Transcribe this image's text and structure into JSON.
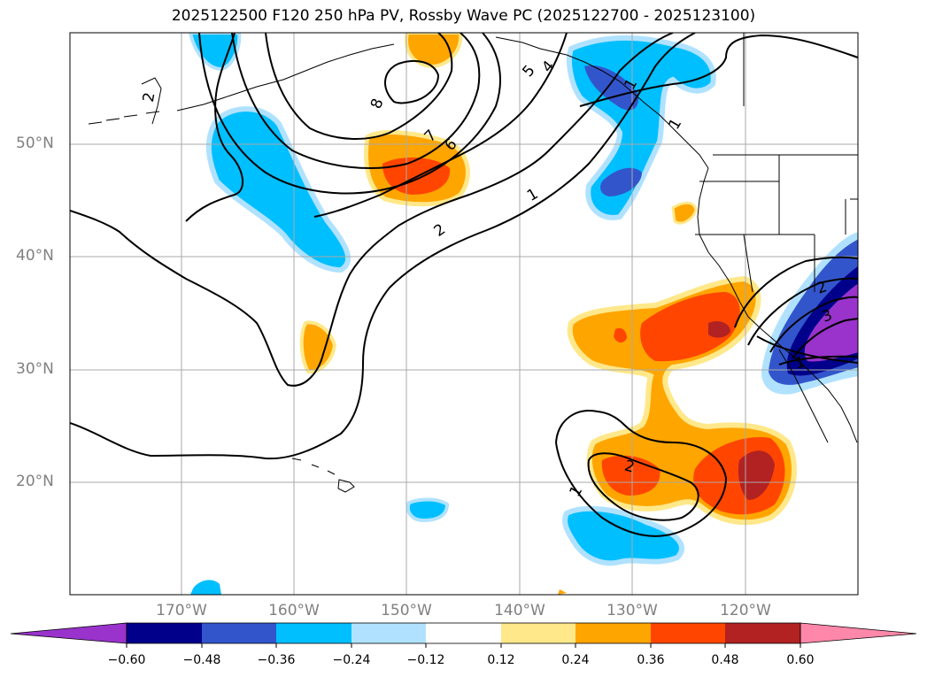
{
  "title": "2025122500 F120 250 hPa PV, Rossby Wave PC (2025122700 - 2025123100)",
  "map": {
    "lat_labels": [
      "50°N",
      "40°N",
      "30°N",
      "20°N"
    ],
    "lon_labels": [
      "170°W",
      "160°W",
      "150°W",
      "140°W",
      "130°W",
      "120°W"
    ],
    "gridline_color": "#aaaaaa",
    "label_color": "#808080",
    "contour_labels": [
      "8",
      "7",
      "6",
      "5",
      "4",
      "2",
      "1",
      "2",
      "1",
      "2",
      "3",
      "1",
      "2",
      "1",
      "1"
    ]
  },
  "colorbar": {
    "ticks": [
      "−0.60",
      "−0.48",
      "−0.36",
      "−0.24",
      "−0.12",
      "0.12",
      "0.24",
      "0.36",
      "0.48",
      "0.60"
    ],
    "colors": [
      "#9933cc",
      "#00008b",
      "#3355cc",
      "#00bfff",
      "#b0e2ff",
      "#ffffff",
      "#ffe88a",
      "#ffa500",
      "#ff4500",
      "#b22222",
      "#ff88aa"
    ]
  }
}
